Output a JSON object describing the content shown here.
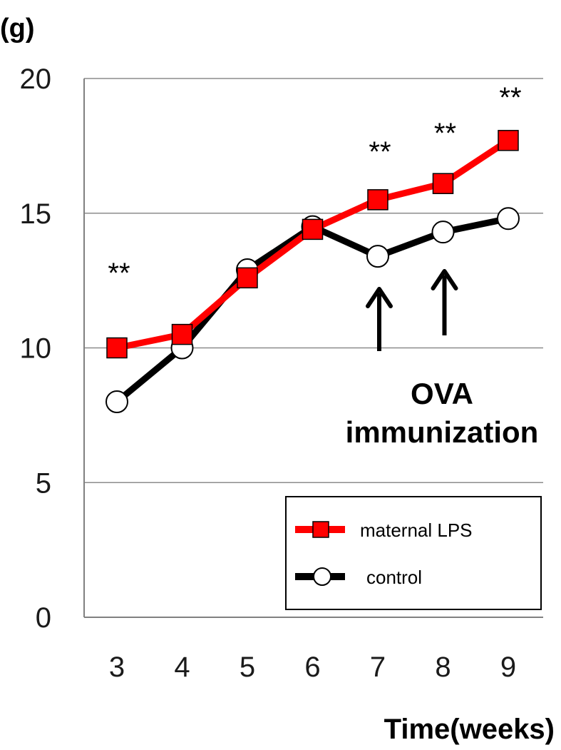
{
  "chart_data": {
    "type": "line",
    "y_unit_label": "(g)",
    "xlabel": "Time(weeks)",
    "categories": [
      "3",
      "4",
      "5",
      "6",
      "7",
      "8",
      "9"
    ],
    "ylim": [
      0,
      20
    ],
    "y_ticks": [
      "0",
      "5",
      "10",
      "15",
      "20"
    ],
    "grid": true,
    "series": [
      {
        "name": "maternal LPS",
        "values": [
          10.0,
          10.5,
          12.6,
          14.4,
          15.5,
          16.1,
          17.7
        ],
        "color": "#ff0000",
        "marker": "square"
      },
      {
        "name": "control",
        "values": [
          8.0,
          10.0,
          12.9,
          14.5,
          13.4,
          14.3,
          14.8
        ],
        "color": "#000000",
        "marker": "circle"
      }
    ],
    "significance": [
      {
        "week": "3",
        "label": "**"
      },
      {
        "week": "7",
        "label": "**"
      },
      {
        "week": "8",
        "label": "**"
      },
      {
        "week": "9",
        "label": "**"
      }
    ],
    "annotation": {
      "line1": "OVA",
      "line2": "immunization",
      "arrow_weeks": [
        "7",
        "8"
      ]
    },
    "legend_position": "bottom-right"
  }
}
